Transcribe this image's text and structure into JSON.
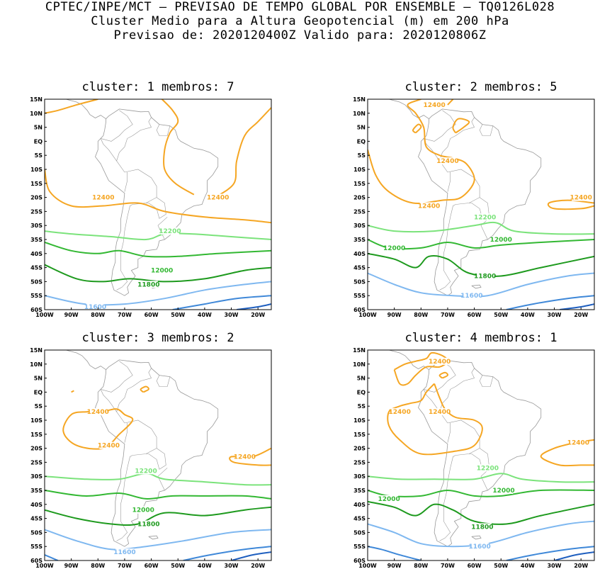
{
  "header": {
    "line1": "CPTEC/INPE/MCT – PREVISAO DE TEMPO GLOBAL POR ENSEMBLE – TQ0126L028",
    "line2": "Cluster Medio para a Altura Geopotencial (m) em 200 hPa",
    "line3": "Previsao de: 2020120400Z   Valido para: 2020120806Z"
  },
  "colors": {
    "12400": "#f5a623",
    "12200": "#7be37b",
    "12000": "#33b833",
    "11800": "#1e9a1e",
    "11600": "#7fb8f0",
    "11400": "#3f88d8",
    "11200": "#1f5fbf",
    "coast": "#999999"
  },
  "chart_data": [
    {
      "type": "contour",
      "title": "cluster: 1   membros: 7",
      "x_ticks": [
        "100W",
        "90W",
        "80W",
        "70W",
        "60W",
        "50W",
        "40W",
        "30W",
        "20W"
      ],
      "y_ticks": [
        "15N",
        "10N",
        "5N",
        "EQ",
        "5S",
        "10S",
        "15S",
        "20S",
        "25S",
        "30S",
        "35S",
        "40S",
        "45S",
        "50S",
        "55S",
        "60S"
      ],
      "xlim": [
        -100,
        -15
      ],
      "ylim": [
        -60,
        15
      ],
      "labels": [
        {
          "text": "12400",
          "lon": -78,
          "lat": -20,
          "level": "12400"
        },
        {
          "text": "12400",
          "lon": -35,
          "lat": -20,
          "level": "12400"
        },
        {
          "text": "12200",
          "lon": -53,
          "lat": -32,
          "level": "12200"
        },
        {
          "text": "12000",
          "lon": -56,
          "lat": -46,
          "level": "12000"
        },
        {
          "text": "11800",
          "lon": -61,
          "lat": -51,
          "level": "11800"
        },
        {
          "text": "11600",
          "lon": -81,
          "lat": -59,
          "level": "11600"
        }
      ]
    },
    {
      "type": "contour",
      "title": "cluster: 2   membros: 5",
      "x_ticks": [
        "100W",
        "90W",
        "80W",
        "70W",
        "60W",
        "50W",
        "40W",
        "30W",
        "20W"
      ],
      "y_ticks": [
        "15N",
        "10N",
        "5N",
        "EQ",
        "5S",
        "10S",
        "15S",
        "20S",
        "25S",
        "30S",
        "35S",
        "40S",
        "45S",
        "50S",
        "55S",
        "60S"
      ],
      "xlim": [
        -100,
        -15
      ],
      "ylim": [
        -60,
        15
      ],
      "labels": [
        {
          "text": "12400",
          "lon": -75,
          "lat": 13,
          "level": "12400"
        },
        {
          "text": "12400",
          "lon": -70,
          "lat": -7,
          "level": "12400"
        },
        {
          "text": "12400",
          "lon": -77,
          "lat": -23,
          "level": "12400"
        },
        {
          "text": "12400",
          "lon": -20,
          "lat": -20,
          "level": "12400"
        },
        {
          "text": "12200",
          "lon": -56,
          "lat": -27,
          "level": "12200"
        },
        {
          "text": "12000",
          "lon": -90,
          "lat": -38,
          "level": "12000"
        },
        {
          "text": "12000",
          "lon": -50,
          "lat": -35,
          "level": "12000"
        },
        {
          "text": "11800",
          "lon": -56,
          "lat": -48,
          "level": "11800"
        },
        {
          "text": "11600",
          "lon": -61,
          "lat": -55,
          "level": "11600"
        }
      ]
    },
    {
      "type": "contour",
      "title": "cluster: 3   membros: 2",
      "x_ticks": [
        "100W",
        "90W",
        "80W",
        "70W",
        "60W",
        "50W",
        "40W",
        "30W",
        "20W"
      ],
      "y_ticks": [
        "15N",
        "10N",
        "5N",
        "EQ",
        "5S",
        "10S",
        "15S",
        "20S",
        "25S",
        "30S",
        "35S",
        "40S",
        "45S",
        "50S",
        "55S",
        "60S"
      ],
      "xlim": [
        -100,
        -15
      ],
      "ylim": [
        -60,
        15
      ],
      "labels": [
        {
          "text": "12400",
          "lon": -80,
          "lat": -7,
          "level": "12400"
        },
        {
          "text": "12400",
          "lon": -76,
          "lat": -19,
          "level": "12400"
        },
        {
          "text": "12400",
          "lon": -25,
          "lat": -23,
          "level": "12400"
        },
        {
          "text": "12200",
          "lon": -62,
          "lat": -28,
          "level": "12200"
        },
        {
          "text": "12000",
          "lon": -63,
          "lat": -42,
          "level": "12000"
        },
        {
          "text": "11800",
          "lon": -61,
          "lat": -47,
          "level": "11800"
        },
        {
          "text": "11600",
          "lon": -70,
          "lat": -57,
          "level": "11600"
        }
      ]
    },
    {
      "type": "contour",
      "title": "cluster: 4   membros: 1",
      "x_ticks": [
        "100W",
        "90W",
        "80W",
        "70W",
        "60W",
        "50W",
        "40W",
        "30W",
        "20W"
      ],
      "y_ticks": [
        "15N",
        "10N",
        "5N",
        "EQ",
        "5S",
        "10S",
        "15S",
        "20S",
        "25S",
        "30S",
        "35S",
        "40S",
        "45S",
        "50S",
        "55S",
        "60S"
      ],
      "xlim": [
        -100,
        -15
      ],
      "ylim": [
        -60,
        15
      ],
      "labels": [
        {
          "text": "12400",
          "lon": -73,
          "lat": 11,
          "level": "12400"
        },
        {
          "text": "12400",
          "lon": -88,
          "lat": -7,
          "level": "12400"
        },
        {
          "text": "12400",
          "lon": -73,
          "lat": -7,
          "level": "12400"
        },
        {
          "text": "12400",
          "lon": -21,
          "lat": -18,
          "level": "12400"
        },
        {
          "text": "12200",
          "lon": -55,
          "lat": -27,
          "level": "12200"
        },
        {
          "text": "12000",
          "lon": -92,
          "lat": -38,
          "level": "12000"
        },
        {
          "text": "12000",
          "lon": -49,
          "lat": -35,
          "level": "12000"
        },
        {
          "text": "11800",
          "lon": -57,
          "lat": -48,
          "level": "11800"
        },
        {
          "text": "11600",
          "lon": -58,
          "lat": -55,
          "level": "11600"
        }
      ]
    }
  ]
}
